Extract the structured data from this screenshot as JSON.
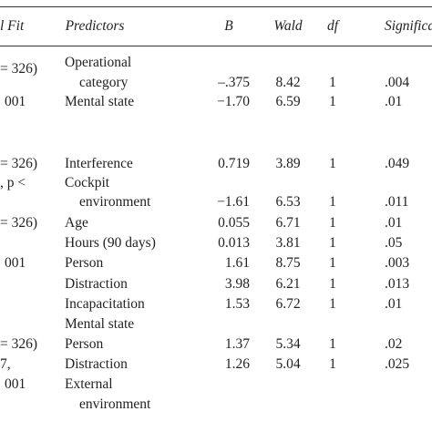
{
  "table": {
    "header": {
      "model_fit": "l Fit",
      "predictors": "Predictors",
      "B": "B",
      "wald": "Wald",
      "df": "df",
      "significance": "Significanc"
    },
    "rows": [
      {
        "predictor": "Operational"
      },
      {
        "model_fit": "= 326)",
        "predictor": "category",
        "B": "–.375",
        "wald": "8.42",
        "df": "1",
        "significance": ".004"
      },
      {
        "model_fit": "001",
        "predictor": "Mental state",
        "B": "−1.70",
        "wald": "6.59",
        "df": "1",
        "significance": ".01"
      },
      {
        "model_fit": "= 326)",
        "predictor": "Interference",
        "B": "0.719",
        "wald": "3.89",
        "df": "1",
        "significance": ".049"
      },
      {
        "model_fit": ", p <",
        "predictor": "Cockpit"
      },
      {
        "predictor": "environment",
        "B": "−1.61",
        "wald": "6.53",
        "df": "1",
        "significance": ".011"
      },
      {
        "model_fit": "= 326)",
        "predictor": "Age",
        "B": "0.055",
        "wald": "6.71",
        "df": "1",
        "significance": ".01"
      },
      {
        "predictor": "Hours (90 days)",
        "B": "0.013",
        "wald": "3.81",
        "df": "1",
        "significance": ".05"
      },
      {
        "model_fit": "001",
        "predictor": "Person",
        "B": "1.61",
        "wald": "8.75",
        "df": "1",
        "significance": ".003"
      },
      {
        "predictor": "Distraction",
        "B": "3.98",
        "wald": "6.21",
        "df": "1",
        "significance": ".013"
      },
      {
        "predictor": "Incapacitation",
        "B": "1.53",
        "wald": "6.72",
        "df": "1",
        "significance": ".01"
      },
      {
        "predictor": "Mental state"
      },
      {
        "model_fit": "= 326)",
        "predictor": "Person",
        "B": "1.37",
        "wald": "5.34",
        "df": "1",
        "significance": ".02"
      },
      {
        "model_fit": "7,",
        "predictor": "Distraction",
        "B": "1.26",
        "wald": "5.04",
        "df": "1",
        "significance": ".025"
      },
      {
        "model_fit": "001",
        "predictor": "External"
      },
      {
        "predictor": "environment"
      }
    ]
  }
}
